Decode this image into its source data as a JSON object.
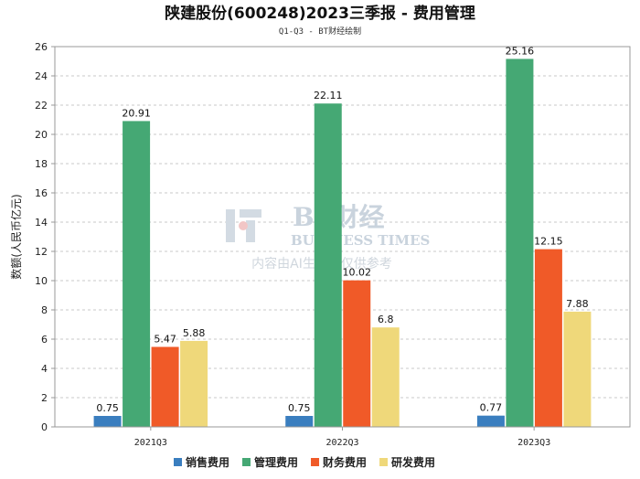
{
  "chart_data": {
    "type": "bar",
    "title": "陕建股份(600248)2023三季报 - 费用管理",
    "subtitle": "Q1-Q3 - BT财经绘制",
    "xlabel": "",
    "ylabel": "数额(人民币亿元)",
    "ylim": [
      0,
      26
    ],
    "yticks": [
      0,
      2,
      4,
      6,
      8,
      10,
      12,
      14,
      16,
      18,
      20,
      22,
      24,
      26
    ],
    "grid": true,
    "legend_position": "bottom",
    "categories": [
      "2021Q3",
      "2022Q3",
      "2023Q3"
    ],
    "series": [
      {
        "name": "销售费用",
        "color": "#3a7ebf",
        "values": [
          0.75,
          0.75,
          0.77
        ],
        "labels": [
          "0.75",
          "0.75",
          "0.77"
        ]
      },
      {
        "name": "管理费用",
        "color": "#45a874",
        "values": [
          20.91,
          22.11,
          25.16
        ],
        "labels": [
          "20.91",
          "22.11",
          "25.16"
        ]
      },
      {
        "name": "财务费用",
        "color": "#f05a28",
        "values": [
          5.47,
          10.02,
          12.15
        ],
        "labels": [
          "5.47",
          "10.02",
          "12.15"
        ]
      },
      {
        "name": "研发费用",
        "color": "#efd87a",
        "values": [
          5.88,
          6.8,
          7.88
        ],
        "labels": [
          "5.88",
          "6.8",
          "7.88"
        ]
      }
    ]
  },
  "watermark": {
    "brand": "BT财经",
    "brand_en": "BUSINESS TIMES",
    "note": "内容由AI生成，仅供参考"
  }
}
